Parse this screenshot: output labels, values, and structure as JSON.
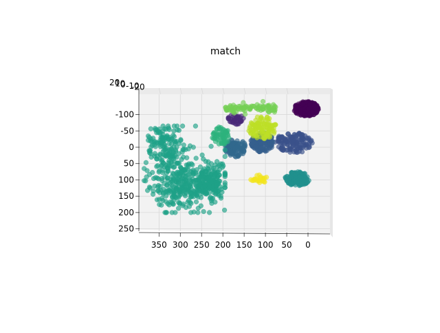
{
  "chart_data": {
    "type": "scatter",
    "projection": "3d",
    "title": "match",
    "xlabel": "",
    "ylabel": "",
    "zlabel": "",
    "xlim": [
      -45,
      395
    ],
    "ylim": [
      -160,
      258
    ],
    "x_ticks": [
      350,
      300,
      250,
      200,
      150,
      100,
      50,
      0
    ],
    "y_ticks": [
      -100,
      -50,
      0,
      50,
      100,
      150,
      200,
      250
    ],
    "z_ticks": [
      20,
      10,
      0,
      -10,
      -20
    ],
    "grid": true,
    "legend": "none",
    "colormap": "viridis",
    "point_alpha": 0.65,
    "pane_color": "#f2f2f2",
    "clusters": [
      {
        "color": "#440154",
        "n": 220,
        "x": [
          -25,
          33
        ],
        "y": [
          -140,
          -95
        ],
        "shape": "ellipse"
      },
      {
        "color": "#3b518b",
        "n": 140,
        "x": [
          -10,
          78
        ],
        "y": [
          -45,
          18
        ],
        "shape": "ellipse"
      },
      {
        "color": "#355f8d",
        "n": 160,
        "x": [
          80,
          135
        ],
        "y": [
          -45,
          15
        ],
        "shape": "ellipse"
      },
      {
        "color": "#31688e",
        "n": 110,
        "x": [
          145,
          195
        ],
        "y": [
          -25,
          30
        ],
        "shape": "ellipse"
      },
      {
        "color": "#482878",
        "n": 40,
        "x": [
          150,
          190
        ],
        "y": [
          -100,
          -70
        ],
        "shape": "ellipse"
      },
      {
        "color": "#21908d",
        "n": 150,
        "x": [
          -5,
          55
        ],
        "y": [
          75,
          118
        ],
        "shape": "ellipse"
      },
      {
        "color": "#1fa187",
        "n": 650,
        "x": [
          195,
          385
        ],
        "y": [
          -65,
          200
        ],
        "shape": "blob"
      },
      {
        "color": "#2db27d",
        "n": 60,
        "x": [
          185,
          225
        ],
        "y": [
          -65,
          -5
        ],
        "shape": "ellipse"
      },
      {
        "color": "#75d054",
        "n": 90,
        "x": [
          75,
          195
        ],
        "y": [
          -143,
          -100
        ],
        "shape": "band"
      },
      {
        "color": "#bddf26",
        "n": 110,
        "x": [
          75,
          140
        ],
        "y": [
          -95,
          -25
        ],
        "shape": "ellipse"
      },
      {
        "color": "#f2e51d",
        "n": 25,
        "x": [
          95,
          135
        ],
        "y": [
          85,
          110
        ],
        "shape": "ellipse"
      }
    ]
  }
}
